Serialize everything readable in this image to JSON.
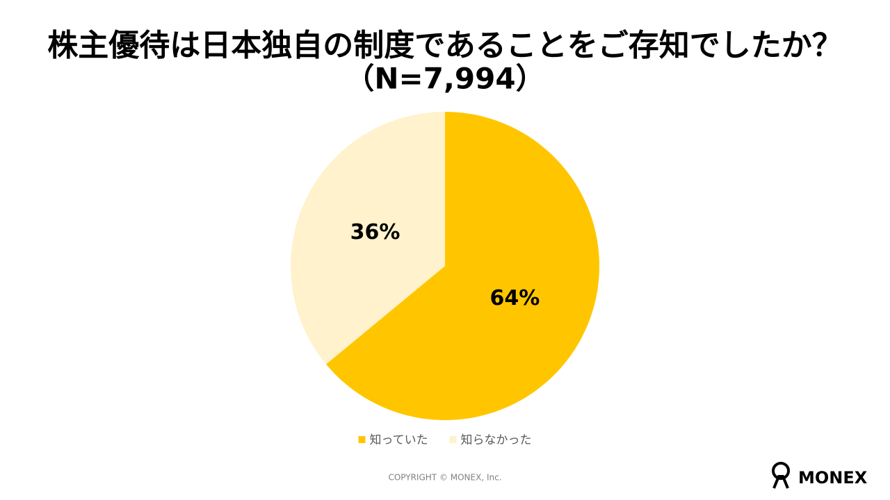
{
  "chart_data": {
    "type": "pie",
    "title": "株主優待は日本独自の制度であることをご存知でしたか？",
    "subtitle": "（N=7,994）",
    "categories": [
      "知っていた",
      "知らなかった"
    ],
    "values": [
      64,
      36
    ],
    "value_labels": [
      "64%",
      "36%"
    ],
    "colors": [
      "#ffc600",
      "#fff2cc"
    ],
    "legend": "bottom"
  },
  "footer": {
    "copyright": "COPYRIGHT © MONEX, Inc.",
    "logo": "MONEX"
  }
}
